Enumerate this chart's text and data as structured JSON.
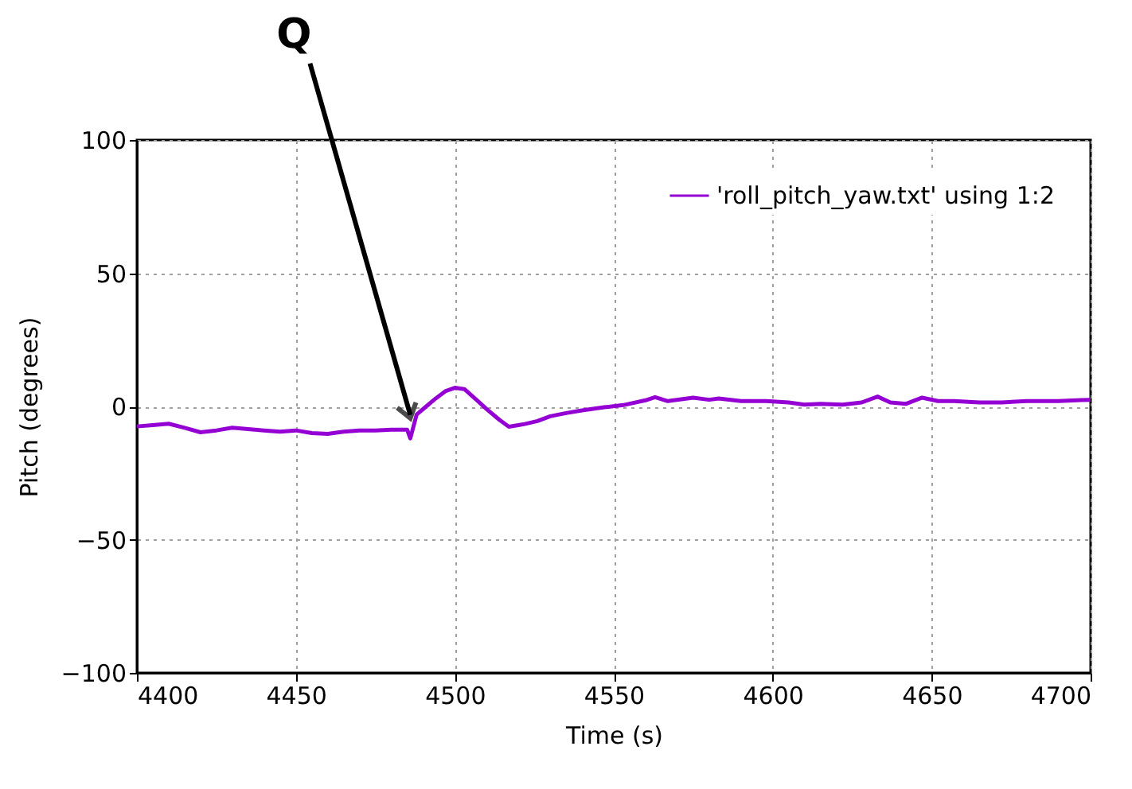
{
  "chart_data": {
    "type": "line",
    "xlabel": "Time (s)",
    "ylabel": "Pitch (degrees)",
    "annotations": [
      {
        "text": "Q",
        "x": 4486,
        "y": -8
      }
    ],
    "xlim": [
      4400,
      4700
    ],
    "xticks": [
      4400,
      4450,
      4500,
      4550,
      4600,
      4650,
      4700
    ],
    "ylim": [
      -100,
      100
    ],
    "yticks": [
      -100,
      -50,
      0,
      50,
      100
    ],
    "grid": true,
    "legend": "top right",
    "line_style": "solid",
    "series": [
      {
        "name": "'roll_pitch_yaw.txt' using 1:2",
        "color": "#9400d3",
        "x": [
          4400,
          4405,
          4410,
          4415,
          4420,
          4425,
          4430,
          4435,
          4440,
          4445,
          4450,
          4455,
          4460,
          4465,
          4470,
          4475,
          4480,
          4485,
          4486,
          4488,
          4491,
          4494,
          4497,
          4500,
          4503,
          4507,
          4510,
          4514,
          4517,
          4520,
          4522,
          4526,
          4530,
          4535,
          4540,
          4547,
          4553,
          4560,
          4563,
          4567,
          4575,
          4580,
          4583,
          4590,
          4598,
          4605,
          4610,
          4615,
          4622,
          4628,
          4633,
          4637,
          4642,
          4647,
          4652,
          4657,
          4665,
          4672,
          4680,
          4690,
          4697,
          4700
        ],
        "values": [
          -7.5,
          -7,
          -6.5,
          -8,
          -9.7,
          -9,
          -8,
          -8.5,
          -9,
          -9.5,
          -9,
          -10,
          -10.3,
          -9.5,
          -9,
          -9,
          -8.7,
          -8.7,
          -12,
          -3,
          0,
          3,
          5.7,
          7,
          6.5,
          2.3,
          -1,
          -5,
          -7.6,
          -7,
          -6.6,
          -5.5,
          -3.7,
          -2.5,
          -1.5,
          -0.3,
          0.5,
          2.3,
          3.5,
          2,
          3.3,
          2.5,
          3,
          2,
          2,
          1.5,
          0.7,
          1,
          0.7,
          1.5,
          3.7,
          1.5,
          1,
          3.3,
          2,
          2,
          1.5,
          1.5,
          2,
          2,
          2.4,
          2.5
        ]
      }
    ]
  }
}
